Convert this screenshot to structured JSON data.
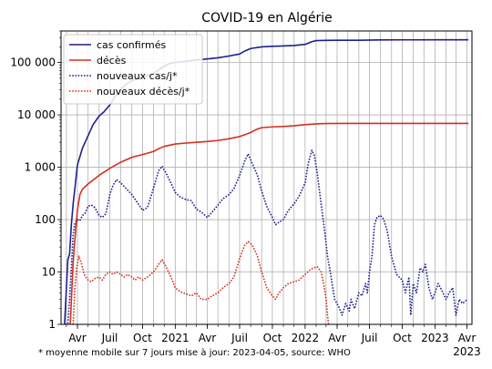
{
  "chart_data": {
    "type": "line",
    "title": "COVID-19 en Algérie",
    "footnote": "* moyenne mobile sur 7 jours  mise à jour: 2023-04-05, source: WHO",
    "y_scale": "log",
    "ylim": [
      1,
      400000
    ],
    "xlim": [
      "2020-02-15",
      "2023-04-15"
    ],
    "grid": true,
    "legend_position": "top-left",
    "y_ticks": [
      {
        "value": 1,
        "label": "1"
      },
      {
        "value": 10,
        "label": "10"
      },
      {
        "value": 100,
        "label": "100"
      },
      {
        "value": 1000,
        "label": "1 000"
      },
      {
        "value": 10000,
        "label": "10 000"
      },
      {
        "value": 100000,
        "label": "100 000"
      }
    ],
    "x_ticks": [
      {
        "date": "2020-04-01",
        "label": "Avr"
      },
      {
        "date": "2020-07-01",
        "label": "Juil"
      },
      {
        "date": "2020-10-01",
        "label": "Oct"
      },
      {
        "date": "2021-01-01",
        "label": "2021"
      },
      {
        "date": "2021-04-01",
        "label": "Avr"
      },
      {
        "date": "2021-07-01",
        "label": "Juil"
      },
      {
        "date": "2021-10-01",
        "label": "Oct"
      },
      {
        "date": "2022-01-01",
        "label": "2022"
      },
      {
        "date": "2022-04-01",
        "label": "Avr"
      },
      {
        "date": "2022-07-01",
        "label": "Juil"
      },
      {
        "date": "2022-10-01",
        "label": "Oct"
      },
      {
        "date": "2023-01-01",
        "label": "2023"
      },
      {
        "date": "2023-04-01",
        "label": "Avr"
      }
    ],
    "x_year_label": "2023",
    "series": [
      {
        "name": "cas confirmés",
        "color": "#1f1f8f",
        "style": "solid",
        "points": [
          [
            "2020-02-25",
            1
          ],
          [
            "2020-03-05",
            17
          ],
          [
            "2020-03-10",
            22
          ],
          [
            "2020-03-15",
            80
          ],
          [
            "2020-03-20",
            200
          ],
          [
            "2020-03-25",
            400
          ],
          [
            "2020-04-01",
            1100
          ],
          [
            "2020-04-15",
            2300
          ],
          [
            "2020-05-01",
            4000
          ],
          [
            "2020-05-15",
            6500
          ],
          [
            "2020-06-01",
            9500
          ],
          [
            "2020-06-15",
            11500
          ],
          [
            "2020-07-01",
            15500
          ],
          [
            "2020-07-15",
            22000
          ],
          [
            "2020-08-01",
            31000
          ],
          [
            "2020-08-15",
            38000
          ],
          [
            "2020-09-01",
            45000
          ],
          [
            "2020-10-01",
            52000
          ],
          [
            "2020-11-01",
            62000
          ],
          [
            "2020-11-15",
            72000
          ],
          [
            "2020-12-01",
            85000
          ],
          [
            "2020-12-15",
            95000
          ],
          [
            "2021-01-01",
            100000
          ],
          [
            "2021-02-01",
            106000
          ],
          [
            "2021-03-01",
            112000
          ],
          [
            "2021-04-01",
            117000
          ],
          [
            "2021-05-01",
            123000
          ],
          [
            "2021-06-01",
            133000
          ],
          [
            "2021-07-01",
            145000
          ],
          [
            "2021-07-15",
            165000
          ],
          [
            "2021-08-01",
            185000
          ],
          [
            "2021-09-01",
            199000
          ],
          [
            "2021-10-01",
            204000
          ],
          [
            "2021-11-01",
            207000
          ],
          [
            "2021-12-01",
            211000
          ],
          [
            "2022-01-01",
            222000
          ],
          [
            "2022-01-20",
            250000
          ],
          [
            "2022-02-01",
            262000
          ],
          [
            "2022-03-01",
            265000
          ],
          [
            "2022-04-01",
            265700
          ],
          [
            "2022-06-01",
            266000
          ],
          [
            "2022-08-01",
            270000
          ],
          [
            "2022-10-01",
            270700
          ],
          [
            "2023-01-01",
            271200
          ],
          [
            "2023-04-05",
            271500
          ]
        ]
      },
      {
        "name": "décès",
        "color": "#d03020",
        "style": "solid",
        "points": [
          [
            "2020-03-12",
            1
          ],
          [
            "2020-03-16",
            4
          ],
          [
            "2020-03-20",
            15
          ],
          [
            "2020-03-24",
            35
          ],
          [
            "2020-04-01",
            150
          ],
          [
            "2020-04-08",
            300
          ],
          [
            "2020-04-15",
            380
          ],
          [
            "2020-05-01",
            480
          ],
          [
            "2020-06-01",
            700
          ],
          [
            "2020-07-01",
            950
          ],
          [
            "2020-08-01",
            1250
          ],
          [
            "2020-09-01",
            1550
          ],
          [
            "2020-10-01",
            1750
          ],
          [
            "2020-11-01",
            2000
          ],
          [
            "2020-11-15",
            2250
          ],
          [
            "2020-12-01",
            2500
          ],
          [
            "2021-01-01",
            2780
          ],
          [
            "2021-02-01",
            2900
          ],
          [
            "2021-03-01",
            3000
          ],
          [
            "2021-04-01",
            3100
          ],
          [
            "2021-05-01",
            3250
          ],
          [
            "2021-06-01",
            3500
          ],
          [
            "2021-07-01",
            3850
          ],
          [
            "2021-08-01",
            4600
          ],
          [
            "2021-08-15",
            5200
          ],
          [
            "2021-09-01",
            5700
          ],
          [
            "2021-10-01",
            5900
          ],
          [
            "2021-11-01",
            6000
          ],
          [
            "2021-12-01",
            6200
          ],
          [
            "2022-01-01",
            6500
          ],
          [
            "2022-02-01",
            6750
          ],
          [
            "2022-03-01",
            6850
          ],
          [
            "2022-05-01",
            6875
          ],
          [
            "2022-08-01",
            6877
          ],
          [
            "2023-01-01",
            6881
          ],
          [
            "2023-04-05",
            6881
          ]
        ]
      },
      {
        "name": "nouveaux cas/j*",
        "color": "#1f1f8f",
        "style": "dotted",
        "points": [
          [
            "2020-02-28",
            1
          ],
          [
            "2020-03-05",
            1
          ],
          [
            "2020-03-10",
            3
          ],
          [
            "2020-03-15",
            12
          ],
          [
            "2020-03-20",
            50
          ],
          [
            "2020-03-25",
            85
          ],
          [
            "2020-04-01",
            100
          ],
          [
            "2020-04-08",
            95
          ],
          [
            "2020-04-15",
            120
          ],
          [
            "2020-04-22",
            130
          ],
          [
            "2020-05-01",
            180
          ],
          [
            "2020-05-10",
            190
          ],
          [
            "2020-05-20",
            170
          ],
          [
            "2020-06-01",
            120
          ],
          [
            "2020-06-10",
            110
          ],
          [
            "2020-06-20",
            130
          ],
          [
            "2020-07-01",
            300
          ],
          [
            "2020-07-10",
            450
          ],
          [
            "2020-07-20",
            580
          ],
          [
            "2020-08-01",
            500
          ],
          [
            "2020-08-15",
            400
          ],
          [
            "2020-09-01",
            300
          ],
          [
            "2020-09-15",
            220
          ],
          [
            "2020-10-01",
            150
          ],
          [
            "2020-10-15",
            170
          ],
          [
            "2020-11-01",
            400
          ],
          [
            "2020-11-15",
            850
          ],
          [
            "2020-11-25",
            1050
          ],
          [
            "2020-12-05",
            800
          ],
          [
            "2020-12-20",
            500
          ],
          [
            "2021-01-01",
            330
          ],
          [
            "2021-01-15",
            270
          ],
          [
            "2021-02-01",
            240
          ],
          [
            "2021-02-15",
            230
          ],
          [
            "2021-03-01",
            160
          ],
          [
            "2021-03-15",
            140
          ],
          [
            "2021-04-01",
            110
          ],
          [
            "2021-04-15",
            140
          ],
          [
            "2021-05-01",
            190
          ],
          [
            "2021-05-15",
            250
          ],
          [
            "2021-06-01",
            300
          ],
          [
            "2021-06-15",
            390
          ],
          [
            "2021-07-01",
            700
          ],
          [
            "2021-07-15",
            1300
          ],
          [
            "2021-07-25",
            1800
          ],
          [
            "2021-08-05",
            1200
          ],
          [
            "2021-08-20",
            700
          ],
          [
            "2021-09-01",
            350
          ],
          [
            "2021-09-15",
            180
          ],
          [
            "2021-10-01",
            110
          ],
          [
            "2021-10-10",
            80
          ],
          [
            "2021-10-20",
            90
          ],
          [
            "2021-11-01",
            100
          ],
          [
            "2021-11-15",
            150
          ],
          [
            "2021-12-01",
            200
          ],
          [
            "2021-12-15",
            280
          ],
          [
            "2022-01-01",
            500
          ],
          [
            "2022-01-10",
            1200
          ],
          [
            "2022-01-20",
            2100
          ],
          [
            "2022-01-27",
            1700
          ],
          [
            "2022-02-05",
            700
          ],
          [
            "2022-02-15",
            200
          ],
          [
            "2022-02-25",
            60
          ],
          [
            "2022-03-05",
            20
          ],
          [
            "2022-03-15",
            8
          ],
          [
            "2022-03-25",
            3
          ],
          [
            "2022-04-05",
            2.2
          ],
          [
            "2022-04-15",
            1.5
          ],
          [
            "2022-04-25",
            2.5
          ],
          [
            "2022-05-05",
            1.8
          ],
          [
            "2022-05-10",
            3
          ],
          [
            "2022-05-20",
            2
          ],
          [
            "2022-06-01",
            4
          ],
          [
            "2022-06-10",
            3.5
          ],
          [
            "2022-06-20",
            6
          ],
          [
            "2022-06-25",
            4
          ],
          [
            "2022-07-01",
            10
          ],
          [
            "2022-07-08",
            20
          ],
          [
            "2022-07-15",
            80
          ],
          [
            "2022-07-22",
            110
          ],
          [
            "2022-08-01",
            120
          ],
          [
            "2022-08-10",
            100
          ],
          [
            "2022-08-20",
            60
          ],
          [
            "2022-09-01",
            20
          ],
          [
            "2022-09-15",
            9
          ],
          [
            "2022-10-01",
            7
          ],
          [
            "2022-10-10",
            4
          ],
          [
            "2022-10-20",
            8
          ],
          [
            "2022-10-25",
            1.5
          ],
          [
            "2022-11-01",
            6
          ],
          [
            "2022-11-10",
            4
          ],
          [
            "2022-11-20",
            12
          ],
          [
            "2022-11-28",
            10
          ],
          [
            "2022-12-05",
            14
          ],
          [
            "2022-12-15",
            5
          ],
          [
            "2022-12-25",
            3
          ],
          [
            "2023-01-01",
            4
          ],
          [
            "2023-01-10",
            6
          ],
          [
            "2023-01-20",
            4.5
          ],
          [
            "2023-02-01",
            3
          ],
          [
            "2023-02-10",
            4
          ],
          [
            "2023-02-20",
            5
          ],
          [
            "2023-03-01",
            1.5
          ],
          [
            "2023-03-10",
            3
          ],
          [
            "2023-03-20",
            2.5
          ],
          [
            "2023-04-01",
            3
          ]
        ]
      },
      {
        "name": "nouveaux décès/j*",
        "color": "#d03020",
        "style": "dotted",
        "points": [
          [
            "2020-03-20",
            1
          ],
          [
            "2020-03-25",
            5
          ],
          [
            "2020-03-30",
            12
          ],
          [
            "2020-04-05",
            20
          ],
          [
            "2020-04-12",
            15
          ],
          [
            "2020-04-20",
            9
          ],
          [
            "2020-05-01",
            7
          ],
          [
            "2020-05-10",
            6.5
          ],
          [
            "2020-05-20",
            7.5
          ],
          [
            "2020-06-01",
            8
          ],
          [
            "2020-06-10",
            7
          ],
          [
            "2020-06-20",
            9
          ],
          [
            "2020-07-01",
            10
          ],
          [
            "2020-07-10",
            9
          ],
          [
            "2020-07-20",
            10
          ],
          [
            "2020-08-01",
            9
          ],
          [
            "2020-08-10",
            8
          ],
          [
            "2020-08-20",
            9
          ],
          [
            "2020-09-01",
            8
          ],
          [
            "2020-09-10",
            7
          ],
          [
            "2020-09-20",
            8
          ],
          [
            "2020-10-01",
            7
          ],
          [
            "2020-10-15",
            8
          ],
          [
            "2020-11-01",
            10
          ],
          [
            "2020-11-15",
            14
          ],
          [
            "2020-11-25",
            17
          ],
          [
            "2020-12-05",
            13
          ],
          [
            "2020-12-20",
            8
          ],
          [
            "2021-01-01",
            5
          ],
          [
            "2021-01-15",
            4.2
          ],
          [
            "2021-02-01",
            3.8
          ],
          [
            "2021-02-15",
            3.5
          ],
          [
            "2021-03-01",
            4
          ],
          [
            "2021-03-15",
            3
          ],
          [
            "2021-04-01",
            3
          ],
          [
            "2021-04-15",
            3.5
          ],
          [
            "2021-05-01",
            4
          ],
          [
            "2021-05-15",
            5
          ],
          [
            "2021-06-01",
            6
          ],
          [
            "2021-06-15",
            8
          ],
          [
            "2021-07-01",
            18
          ],
          [
            "2021-07-15",
            32
          ],
          [
            "2021-07-25",
            38
          ],
          [
            "2021-08-05",
            33
          ],
          [
            "2021-08-20",
            20
          ],
          [
            "2021-09-01",
            10
          ],
          [
            "2021-09-15",
            5
          ],
          [
            "2021-10-01",
            3.5
          ],
          [
            "2021-10-10",
            3
          ],
          [
            "2021-10-20",
            4
          ],
          [
            "2021-11-01",
            5
          ],
          [
            "2021-11-15",
            6
          ],
          [
            "2021-12-01",
            6.5
          ],
          [
            "2021-12-15",
            7
          ],
          [
            "2022-01-01",
            9
          ],
          [
            "2022-01-15",
            11
          ],
          [
            "2022-01-25",
            12
          ],
          [
            "2022-02-05",
            12.5
          ],
          [
            "2022-02-15",
            10
          ],
          [
            "2022-02-22",
            6
          ],
          [
            "2022-03-01",
            3
          ],
          [
            "2022-03-05",
            1.5
          ],
          [
            "2022-03-08",
            1
          ]
        ]
      }
    ]
  }
}
